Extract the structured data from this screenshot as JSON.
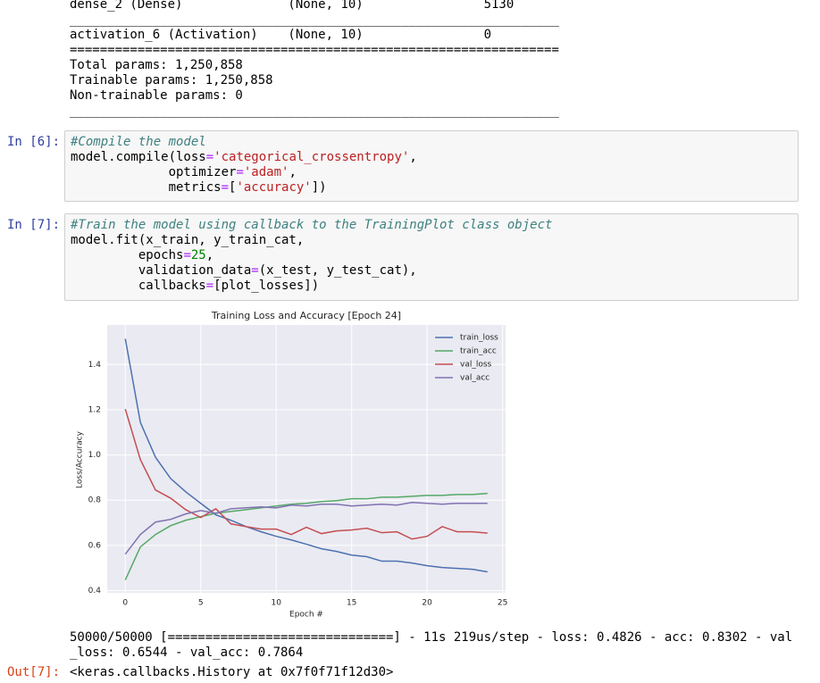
{
  "summary_lines": [
    "dense_2 (Dense)              (None, 10)                5130",
    "_________________________________________________________________",
    "activation_6 (Activation)    (None, 10)                0",
    "=================================================================",
    "Total params: 1,250,858",
    "Trainable params: 1,250,858",
    "Non-trainable params: 0",
    "_________________________________________________________________"
  ],
  "cells": [
    {
      "prompt": "In [6]:",
      "lines": [
        [
          "#Compile the model"
        ],
        [
          "model.compile(loss",
          "=",
          "'categorical_crossentropy'",
          ","
        ],
        [
          "             optimizer",
          "=",
          "'adam'",
          ","
        ],
        [
          "             metrics",
          "=",
          "[",
          "'accuracy'",
          "])"
        ]
      ]
    },
    {
      "prompt": "In [7]:",
      "lines": [
        [
          "#Train the model using callback to the TrainingPlot class object"
        ],
        [
          "model.fit(x_train, y_train_cat,"
        ],
        [
          "         epochs",
          "=",
          "25",
          ","
        ],
        [
          "         validation_data",
          "=",
          "(x_test, y_test_cat),"
        ],
        [
          "         callbacks",
          "=",
          "[plot_losses])"
        ]
      ]
    }
  ],
  "chart_data": {
    "type": "line",
    "title": "Training Loss and Accuracy [Epoch 24]",
    "xlabel": "Epoch #",
    "ylabel": "Loss/Accuracy",
    "x": [
      0,
      1,
      2,
      3,
      4,
      5,
      6,
      7,
      8,
      9,
      10,
      11,
      12,
      13,
      14,
      15,
      16,
      17,
      18,
      19,
      20,
      21,
      22,
      23,
      24
    ],
    "series": [
      {
        "name": "train_loss",
        "color": "#4c72b0",
        "values": [
          1.514,
          1.144,
          0.99,
          0.896,
          0.837,
          0.786,
          0.735,
          0.711,
          0.683,
          0.66,
          0.64,
          0.624,
          0.605,
          0.585,
          0.573,
          0.557,
          0.55,
          0.53,
          0.53,
          0.522,
          0.51,
          0.502,
          0.498,
          0.494,
          0.483
        ]
      },
      {
        "name": "train_acc",
        "color": "#55a868",
        "values": [
          0.447,
          0.593,
          0.648,
          0.687,
          0.711,
          0.727,
          0.742,
          0.75,
          0.758,
          0.766,
          0.774,
          0.782,
          0.786,
          0.794,
          0.798,
          0.806,
          0.806,
          0.813,
          0.813,
          0.817,
          0.821,
          0.821,
          0.825,
          0.825,
          0.83
        ]
      },
      {
        "name": "val_loss",
        "color": "#c44e52",
        "values": [
          1.203,
          0.979,
          0.845,
          0.809,
          0.758,
          0.723,
          0.762,
          0.695,
          0.683,
          0.672,
          0.672,
          0.648,
          0.68,
          0.652,
          0.664,
          0.668,
          0.676,
          0.656,
          0.66,
          0.628,
          0.64,
          0.683,
          0.66,
          0.66,
          0.654
        ]
      },
      {
        "name": "val_acc",
        "color": "#8172b2",
        "values": [
          0.561,
          0.648,
          0.703,
          0.715,
          0.739,
          0.754,
          0.742,
          0.762,
          0.766,
          0.77,
          0.766,
          0.778,
          0.774,
          0.782,
          0.782,
          0.774,
          0.778,
          0.782,
          0.778,
          0.79,
          0.786,
          0.782,
          0.786,
          0.786,
          0.786
        ]
      }
    ],
    "xlim": [
      -1.2,
      25.2
    ],
    "xticks": [
      0,
      5,
      10,
      15,
      20,
      25
    ],
    "ylim": [
      0.39,
      1.575
    ],
    "yticks": [
      0.4,
      0.6,
      0.8,
      {
        "value": 1,
        "label": "1.0"
      },
      1.2,
      1.4
    ],
    "grid": true,
    "legend": "upper right"
  },
  "stream_text": "50000/50000 [==============================] - 11s 219us/step - loss: 0.4826 - acc: 0.8302 - val_loss: 0.6544 - val_acc: 0.7864",
  "output": {
    "prompt": "Out[7]:",
    "text": "<keras.callbacks.History at 0x7f0f71f12d30>"
  }
}
